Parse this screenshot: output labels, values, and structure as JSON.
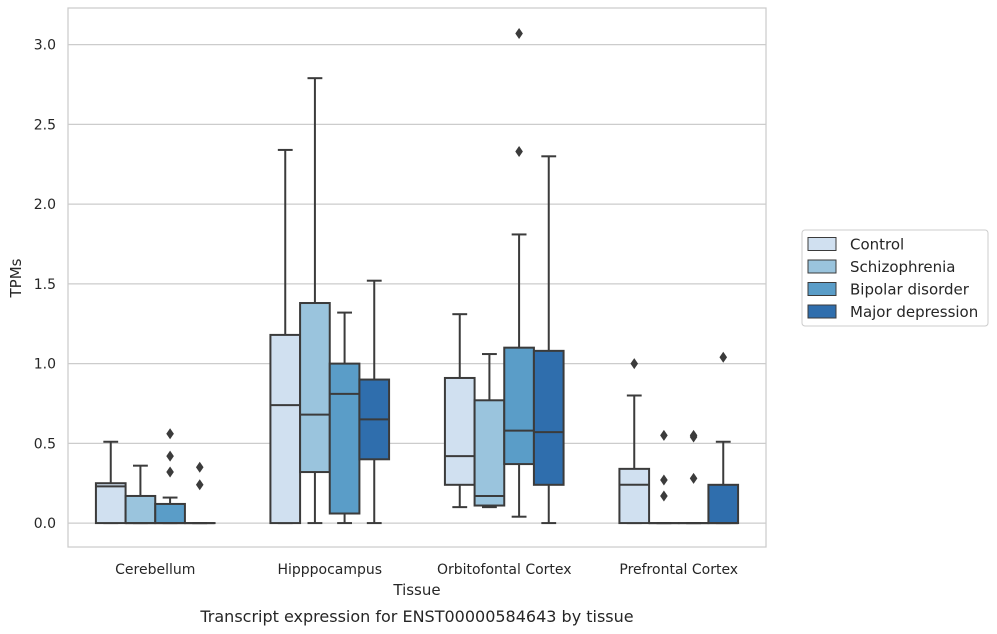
{
  "chart_data": {
    "type": "box",
    "title": "Transcript expression for ENST00000584643 by tissue",
    "xlabel": "Tissue",
    "ylabel": "TPMs",
    "ylim": [
      -0.15,
      3.23
    ],
    "yticks": [
      0.0,
      0.5,
      1.0,
      1.5,
      2.0,
      2.5,
      3.0
    ],
    "ytick_labels": [
      "0.0",
      "0.5",
      "1.0",
      "1.5",
      "2.0",
      "2.5",
      "3.0"
    ],
    "grid": "horizontal",
    "legend_position": "right",
    "categories": [
      "Cerebellum",
      "Hipppocampus",
      "Orbitofontal Cortex",
      "Prefrontal Cortex"
    ],
    "series": [
      {
        "name": "Control",
        "color": "#d0e0f0",
        "boxes": [
          {
            "q1": 0.0,
            "median": 0.23,
            "q3": 0.25,
            "whisker_low": 0.0,
            "whisker_high": 0.51,
            "outliers": []
          },
          {
            "q1": 0.0,
            "median": 0.74,
            "q3": 1.18,
            "whisker_low": 0.0,
            "whisker_high": 2.34,
            "outliers": []
          },
          {
            "q1": 0.24,
            "median": 0.42,
            "q3": 0.91,
            "whisker_low": 0.1,
            "whisker_high": 1.31,
            "outliers": []
          },
          {
            "q1": 0.0,
            "median": 0.24,
            "q3": 0.34,
            "whisker_low": 0.0,
            "whisker_high": 0.8,
            "outliers": [
              1.0
            ]
          }
        ]
      },
      {
        "name": "Schizophrenia",
        "color": "#9ac4dd",
        "boxes": [
          {
            "q1": 0.0,
            "median": 0.0,
            "q3": 0.17,
            "whisker_low": 0.0,
            "whisker_high": 0.36,
            "outliers": []
          },
          {
            "q1": 0.32,
            "median": 0.68,
            "q3": 1.38,
            "whisker_low": 0.0,
            "whisker_high": 2.79,
            "outliers": []
          },
          {
            "q1": 0.11,
            "median": 0.17,
            "q3": 0.77,
            "whisker_low": 0.1,
            "whisker_high": 1.06,
            "outliers": []
          },
          {
            "q1": 0.0,
            "median": 0.0,
            "q3": 0.0,
            "whisker_low": 0.0,
            "whisker_high": 0.0,
            "outliers": [
              0.17,
              0.27,
              0.55
            ]
          }
        ]
      },
      {
        "name": "Bipolar disorder",
        "color": "#5a9dc8",
        "boxes": [
          {
            "q1": 0.0,
            "median": 0.0,
            "q3": 0.12,
            "whisker_low": 0.0,
            "whisker_high": 0.16,
            "outliers": [
              0.32,
              0.42,
              0.56
            ]
          },
          {
            "q1": 0.06,
            "median": 0.81,
            "q3": 1.0,
            "whisker_low": 0.0,
            "whisker_high": 1.32,
            "outliers": []
          },
          {
            "q1": 0.37,
            "median": 0.58,
            "q3": 1.1,
            "whisker_low": 0.04,
            "whisker_high": 1.81,
            "outliers": [
              2.33,
              3.07
            ]
          },
          {
            "q1": 0.0,
            "median": 0.0,
            "q3": 0.0,
            "whisker_low": 0.0,
            "whisker_high": 0.0,
            "outliers": [
              0.28,
              0.54,
              0.55
            ]
          }
        ]
      },
      {
        "name": "Major depression",
        "color": "#2f6ead",
        "boxes": [
          {
            "q1": 0.0,
            "median": 0.0,
            "q3": 0.0,
            "whisker_low": 0.0,
            "whisker_high": 0.0,
            "outliers": [
              0.24,
              0.35
            ]
          },
          {
            "q1": 0.4,
            "median": 0.65,
            "q3": 0.9,
            "whisker_low": 0.0,
            "whisker_high": 1.52,
            "outliers": []
          },
          {
            "q1": 0.24,
            "median": 0.57,
            "q3": 1.08,
            "whisker_low": 0.0,
            "whisker_high": 2.3,
            "outliers": []
          },
          {
            "q1": 0.0,
            "median": 0.0,
            "q3": 0.24,
            "whisker_low": 0.0,
            "whisker_high": 0.51,
            "outliers": [
              1.04
            ]
          }
        ]
      }
    ]
  }
}
